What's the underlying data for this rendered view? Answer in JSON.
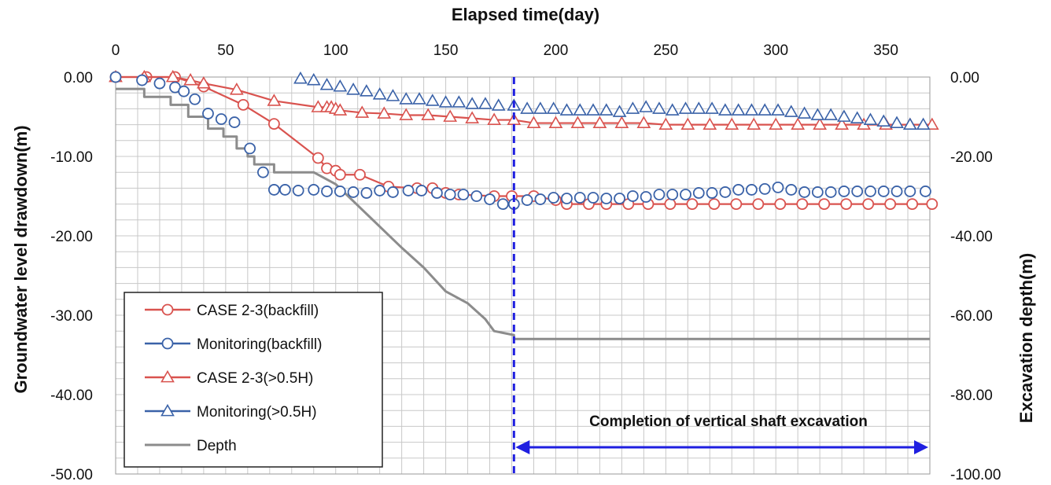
{
  "chart_data": {
    "type": "line",
    "xlabel": "Elapsed time(day)",
    "ylabel": "Groundwater level drawdown(m)",
    "y2label": "Excavation  depth(m)",
    "xlim": [
      0,
      370
    ],
    "ylim": [
      -50,
      0
    ],
    "y2lim": [
      -100,
      0
    ],
    "x_ticks": [
      0,
      50,
      100,
      150,
      200,
      250,
      300,
      350
    ],
    "y_ticks": [
      "0.00",
      "-10.00",
      "-20.00",
      "-30.00",
      "-40.00",
      "-50.00"
    ],
    "y2_ticks": [
      "0.00",
      "-20.00",
      "-40.00",
      "-60.00",
      "-80.00",
      "-100.00"
    ],
    "grid": true,
    "legend_position": "bottom-left",
    "colors": {
      "red": "#d9534f",
      "blue": "#3a62a8",
      "gray": "#8c8c8c",
      "annot": "#1f1fe0"
    },
    "annotation": {
      "text": "Completion of vertical shaft  excavation",
      "x": 181,
      "arrow_from": 181,
      "arrow_to": 370
    },
    "series": [
      {
        "name": "CASE 2-3(backfill)",
        "axis": "left",
        "color": "#d9534f",
        "marker": "circle",
        "line": true,
        "points": [
          [
            0,
            0
          ],
          [
            14,
            0
          ],
          [
            27,
            0
          ],
          [
            40,
            -1.2
          ],
          [
            58,
            -3.5
          ],
          [
            72,
            -5.9
          ],
          [
            92,
            -10.2
          ],
          [
            96,
            -11.5
          ],
          [
            100,
            -11.8
          ],
          [
            102,
            -12.3
          ],
          [
            111,
            -12.3
          ],
          [
            124,
            -13.8
          ],
          [
            137,
            -14.0
          ],
          [
            144,
            -14.0
          ],
          [
            150,
            -14.6
          ],
          [
            156,
            -14.8
          ],
          [
            172,
            -15.0
          ],
          [
            180,
            -15.0
          ],
          [
            190,
            -15.0
          ],
          [
            200,
            -15.5
          ],
          [
            205,
            -16.0
          ],
          [
            215,
            -16.0
          ],
          [
            223,
            -16.0
          ],
          [
            233,
            -16.0
          ],
          [
            242,
            -16.0
          ],
          [
            252,
            -16.0
          ],
          [
            262,
            -16.0
          ],
          [
            272,
            -16.0
          ],
          [
            282,
            -16.0
          ],
          [
            292,
            -16.0
          ],
          [
            302,
            -16.0
          ],
          [
            312,
            -16.0
          ],
          [
            322,
            -16.0
          ],
          [
            332,
            -16.0
          ],
          [
            342,
            -16.0
          ],
          [
            352,
            -16.0
          ],
          [
            362,
            -16.0
          ],
          [
            371,
            -16.0
          ]
        ]
      },
      {
        "name": "Monitoring(backfill)",
        "axis": "left",
        "color": "#3a62a8",
        "marker": "circle",
        "line": false,
        "points": [
          [
            0,
            0
          ],
          [
            12,
            -0.4
          ],
          [
            20,
            -0.8
          ],
          [
            27,
            -1.3
          ],
          [
            31,
            -1.8
          ],
          [
            36,
            -2.8
          ],
          [
            42,
            -4.6
          ],
          [
            48,
            -5.3
          ],
          [
            54,
            -5.7
          ],
          [
            61,
            -9.0
          ],
          [
            67,
            -12.0
          ],
          [
            72,
            -14.2
          ],
          [
            77,
            -14.2
          ],
          [
            83,
            -14.3
          ],
          [
            90,
            -14.2
          ],
          [
            96,
            -14.4
          ],
          [
            102,
            -14.4
          ],
          [
            108,
            -14.5
          ],
          [
            114,
            -14.6
          ],
          [
            120,
            -14.3
          ],
          [
            126,
            -14.5
          ],
          [
            133,
            -14.3
          ],
          [
            139,
            -14.3
          ],
          [
            146,
            -14.6
          ],
          [
            152,
            -14.8
          ],
          [
            158,
            -14.8
          ],
          [
            164,
            -15.0
          ],
          [
            170,
            -15.4
          ],
          [
            176,
            -16.0
          ],
          [
            181,
            -16.0
          ],
          [
            187,
            -15.5
          ],
          [
            193,
            -15.4
          ],
          [
            199,
            -15.2
          ],
          [
            205,
            -15.3
          ],
          [
            211,
            -15.2
          ],
          [
            217,
            -15.2
          ],
          [
            223,
            -15.3
          ],
          [
            229,
            -15.3
          ],
          [
            235,
            -15.0
          ],
          [
            241,
            -15.1
          ],
          [
            247,
            -14.8
          ],
          [
            253,
            -14.8
          ],
          [
            259,
            -14.8
          ],
          [
            265,
            -14.6
          ],
          [
            271,
            -14.6
          ],
          [
            277,
            -14.5
          ],
          [
            283,
            -14.2
          ],
          [
            289,
            -14.2
          ],
          [
            295,
            -14.1
          ],
          [
            301,
            -13.9
          ],
          [
            307,
            -14.2
          ],
          [
            313,
            -14.5
          ],
          [
            319,
            -14.5
          ],
          [
            325,
            -14.5
          ],
          [
            331,
            -14.4
          ],
          [
            337,
            -14.4
          ],
          [
            343,
            -14.4
          ],
          [
            349,
            -14.4
          ],
          [
            355,
            -14.4
          ],
          [
            361,
            -14.4
          ],
          [
            368,
            -14.4
          ]
        ]
      },
      {
        "name": "CASE 2-3(>0.5H)",
        "axis": "left",
        "color": "#d9534f",
        "marker": "triangle",
        "line": true,
        "points": [
          [
            0,
            0
          ],
          [
            13,
            0
          ],
          [
            26,
            0
          ],
          [
            34,
            -0.4
          ],
          [
            40,
            -0.8
          ],
          [
            55,
            -1.6
          ],
          [
            72,
            -3.0
          ],
          [
            92,
            -3.8
          ],
          [
            96,
            -3.8
          ],
          [
            98,
            -3.8
          ],
          [
            100,
            -4.0
          ],
          [
            102,
            -4.2
          ],
          [
            112,
            -4.5
          ],
          [
            122,
            -4.6
          ],
          [
            132,
            -4.8
          ],
          [
            142,
            -4.8
          ],
          [
            152,
            -5.0
          ],
          [
            162,
            -5.2
          ],
          [
            172,
            -5.4
          ],
          [
            181,
            -5.4
          ],
          [
            190,
            -5.8
          ],
          [
            200,
            -5.8
          ],
          [
            210,
            -5.8
          ],
          [
            220,
            -5.8
          ],
          [
            230,
            -5.8
          ],
          [
            240,
            -5.8
          ],
          [
            250,
            -6.0
          ],
          [
            260,
            -6.0
          ],
          [
            270,
            -6.0
          ],
          [
            280,
            -6.0
          ],
          [
            290,
            -6.0
          ],
          [
            300,
            -6.0
          ],
          [
            310,
            -6.0
          ],
          [
            320,
            -6.0
          ],
          [
            330,
            -6.0
          ],
          [
            340,
            -6.0
          ],
          [
            350,
            -6.0
          ],
          [
            361,
            -6.0
          ],
          [
            371,
            -6.0
          ]
        ]
      },
      {
        "name": "Monitoring(>0.5H)",
        "axis": "left",
        "color": "#3a62a8",
        "marker": "triangle",
        "line": false,
        "points": [
          [
            84,
            -0.2
          ],
          [
            90,
            -0.4
          ],
          [
            96,
            -1.0
          ],
          [
            102,
            -1.2
          ],
          [
            108,
            -1.6
          ],
          [
            114,
            -1.8
          ],
          [
            120,
            -2.2
          ],
          [
            126,
            -2.4
          ],
          [
            132,
            -2.8
          ],
          [
            138,
            -2.8
          ],
          [
            144,
            -3.0
          ],
          [
            150,
            -3.2
          ],
          [
            156,
            -3.2
          ],
          [
            162,
            -3.4
          ],
          [
            168,
            -3.4
          ],
          [
            174,
            -3.6
          ],
          [
            181,
            -3.6
          ],
          [
            187,
            -4.0
          ],
          [
            193,
            -4.0
          ],
          [
            199,
            -4.0
          ],
          [
            205,
            -4.2
          ],
          [
            211,
            -4.2
          ],
          [
            217,
            -4.2
          ],
          [
            223,
            -4.2
          ],
          [
            229,
            -4.4
          ],
          [
            235,
            -4.0
          ],
          [
            241,
            -3.8
          ],
          [
            247,
            -4.0
          ],
          [
            253,
            -4.2
          ],
          [
            259,
            -4.0
          ],
          [
            265,
            -4.0
          ],
          [
            271,
            -4.0
          ],
          [
            277,
            -4.2
          ],
          [
            283,
            -4.2
          ],
          [
            289,
            -4.2
          ],
          [
            295,
            -4.2
          ],
          [
            301,
            -4.2
          ],
          [
            307,
            -4.4
          ],
          [
            313,
            -4.6
          ],
          [
            319,
            -4.8
          ],
          [
            325,
            -4.8
          ],
          [
            331,
            -5.0
          ],
          [
            337,
            -5.2
          ],
          [
            343,
            -5.4
          ],
          [
            349,
            -5.6
          ],
          [
            355,
            -5.8
          ],
          [
            361,
            -6.0
          ],
          [
            367,
            -6.0
          ]
        ]
      },
      {
        "name": "Depth",
        "axis": "right",
        "color": "#8c8c8c",
        "marker": "none",
        "line": true,
        "step": true,
        "points": [
          [
            0,
            -3
          ],
          [
            13,
            -3
          ],
          [
            13,
            -5
          ],
          [
            25,
            -5
          ],
          [
            25,
            -7
          ],
          [
            33,
            -7
          ],
          [
            33,
            -10
          ],
          [
            42,
            -10
          ],
          [
            42,
            -13
          ],
          [
            49,
            -13
          ],
          [
            49,
            -15
          ],
          [
            55,
            -15
          ],
          [
            55,
            -18
          ],
          [
            60,
            -18
          ],
          [
            60,
            -20
          ],
          [
            63,
            -20
          ],
          [
            63,
            -22
          ],
          [
            72,
            -22
          ],
          [
            72,
            -24
          ],
          [
            90,
            -24
          ],
          [
            100,
            -27
          ],
          [
            115,
            -35
          ],
          [
            130,
            -43
          ],
          [
            140,
            -48
          ],
          [
            150,
            -54
          ],
          [
            160,
            -57
          ],
          [
            168,
            -61
          ],
          [
            172,
            -64
          ],
          [
            181,
            -65
          ],
          [
            181,
            -66
          ],
          [
            370,
            -66
          ]
        ]
      }
    ]
  }
}
